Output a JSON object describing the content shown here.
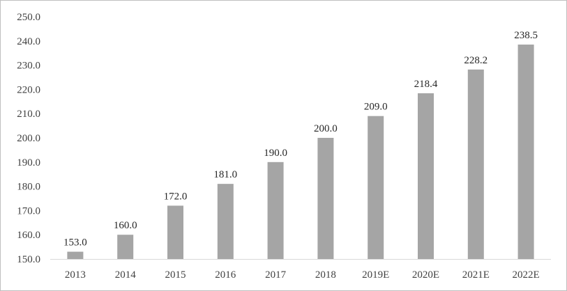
{
  "chart_data": {
    "type": "bar",
    "title": "",
    "xlabel": "",
    "ylabel": "",
    "categories": [
      "2013",
      "2014",
      "2015",
      "2016",
      "2017",
      "2018",
      "2019E",
      "2020E",
      "2021E",
      "2022E"
    ],
    "values": [
      153.0,
      160.0,
      172.0,
      181.0,
      190.0,
      200.0,
      209.0,
      218.4,
      228.2,
      238.5
    ],
    "value_labels": [
      "153.0",
      "160.0",
      "172.0",
      "181.0",
      "190.0",
      "200.0",
      "209.0",
      "218.4",
      "228.2",
      "238.5"
    ],
    "ylim": [
      150,
      250
    ],
    "yticks": [
      "150.0",
      "160.0",
      "170.0",
      "180.0",
      "190.0",
      "200.0",
      "210.0",
      "220.0",
      "230.0",
      "240.0",
      "250.0"
    ],
    "grid": false,
    "legend": "none",
    "colors": {
      "bar": "#a5a5a5",
      "axis": "#d9d9d9",
      "text": "#404040"
    }
  }
}
